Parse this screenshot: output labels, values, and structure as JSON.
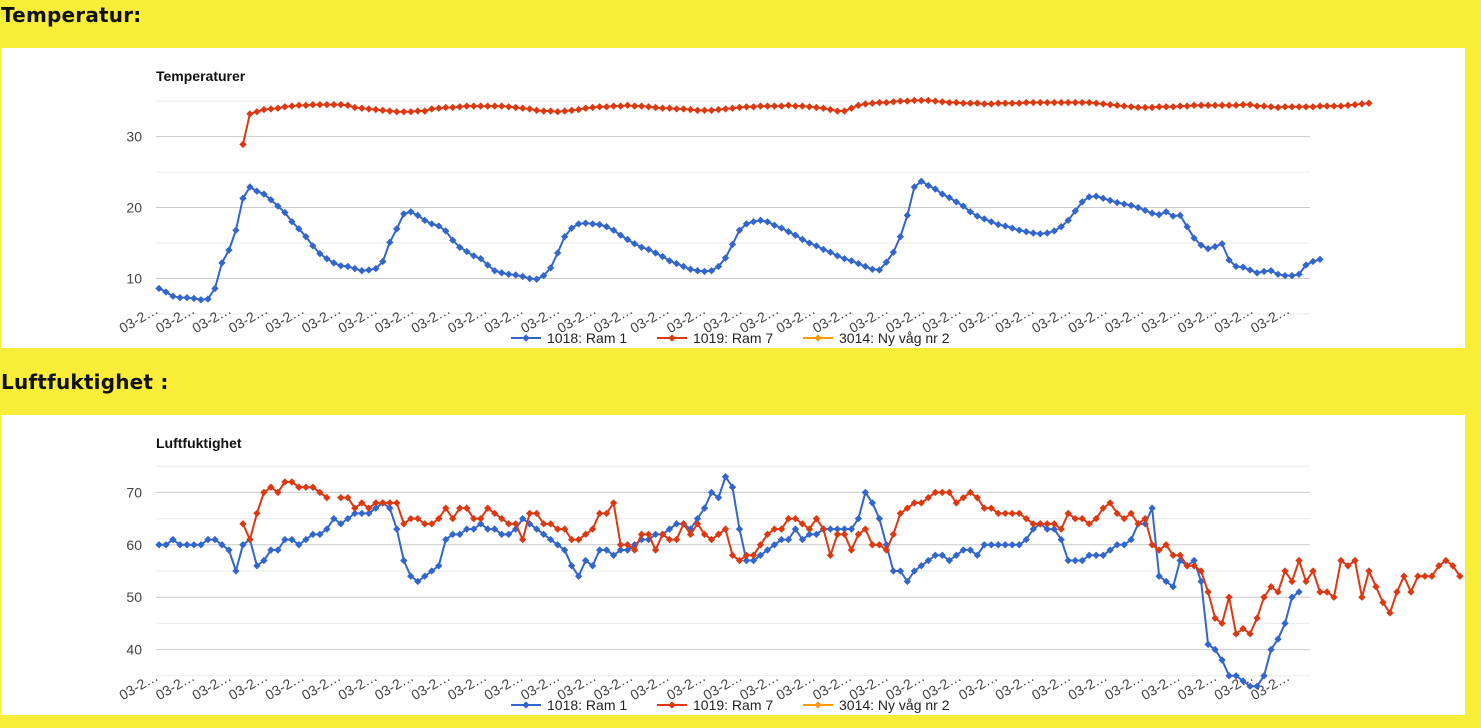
{
  "sections": {
    "temperature_heading": "Temperatur:",
    "humidity_heading": "Luftfuktighet :"
  },
  "x_tick_label": "03-2…",
  "chart_data": [
    {
      "type": "line",
      "title": "Temperaturer",
      "xlabel": "",
      "ylabel": "",
      "yticks": [
        10,
        20,
        30
      ],
      "ylim": [
        5,
        36
      ],
      "grid": true,
      "legend_position": "bottom",
      "x_tick_count": 32,
      "series": [
        {
          "name": "1018: Ram 1",
          "color": "#3366cc",
          "values": [
            8.6,
            8.1,
            7.5,
            7.3,
            7.3,
            7.2,
            7.0,
            7.1,
            8.6,
            12.2,
            14.0,
            16.8,
            21.3,
            22.9,
            22.3,
            21.9,
            21.1,
            20.2,
            19.3,
            18.0,
            17.0,
            15.9,
            14.6,
            13.5,
            12.8,
            12.2,
            11.8,
            11.7,
            11.4,
            11.1,
            11.2,
            11.4,
            12.4,
            15.1,
            17.0,
            19.1,
            19.4,
            18.9,
            18.2,
            17.7,
            17.4,
            16.7,
            15.4,
            14.4,
            13.8,
            13.2,
            12.8,
            11.9,
            11.1,
            10.8,
            10.6,
            10.5,
            10.3,
            10.0,
            9.9,
            10.4,
            11.5,
            13.6,
            15.9,
            17.1,
            17.7,
            17.8,
            17.7,
            17.6,
            17.3,
            16.8,
            16.1,
            15.5,
            14.9,
            14.4,
            14.1,
            13.6,
            13.1,
            12.5,
            12.1,
            11.7,
            11.3,
            11.1,
            11.0,
            11.1,
            11.7,
            12.9,
            14.8,
            16.8,
            17.7,
            18.0,
            18.2,
            18.0,
            17.5,
            17.1,
            16.6,
            16.1,
            15.5,
            15.0,
            14.6,
            14.1,
            13.7,
            13.2,
            12.8,
            12.5,
            12.1,
            11.7,
            11.3,
            11.2,
            12.3,
            13.7,
            15.9,
            18.9,
            22.9,
            23.7,
            23.1,
            22.6,
            21.9,
            21.4,
            20.8,
            20.2,
            19.4,
            18.8,
            18.4,
            18.0,
            17.6,
            17.4,
            17.1,
            16.8,
            16.6,
            16.4,
            16.3,
            16.4,
            16.7,
            17.3,
            18.2,
            19.5,
            20.8,
            21.5,
            21.6,
            21.3,
            21.0,
            20.7,
            20.5,
            20.3,
            20.0,
            19.6,
            19.2,
            19.0,
            19.4,
            18.8,
            18.9,
            17.3,
            15.7,
            14.7,
            14.2,
            14.5,
            14.9,
            12.6,
            11.7,
            11.6,
            11.2,
            10.8,
            11.0,
            11.1,
            10.6,
            10.4,
            10.4,
            10.6,
            11.9,
            12.4,
            12.7
          ]
        },
        {
          "name": "1019: Ram 7",
          "color": "#dc3912",
          "start_index": 12,
          "values": [
            28.9,
            33.2,
            33.5,
            33.8,
            33.9,
            34.0,
            34.2,
            34.3,
            34.4,
            34.4,
            34.5,
            34.5,
            34.5,
            34.5,
            34.5,
            34.4,
            34.1,
            34.0,
            33.9,
            33.8,
            33.7,
            33.6,
            33.5,
            33.5,
            33.5,
            33.6,
            33.6,
            33.9,
            34.0,
            34.1,
            34.1,
            34.2,
            34.3,
            34.3,
            34.3,
            34.3,
            34.3,
            34.3,
            34.2,
            34.1,
            34.0,
            33.9,
            33.7,
            33.6,
            33.6,
            33.5,
            33.6,
            33.7,
            33.8,
            34.0,
            34.1,
            34.2,
            34.2,
            34.3,
            34.3,
            34.4,
            34.3,
            34.3,
            34.2,
            34.1,
            34.0,
            34.0,
            33.9,
            33.9,
            33.8,
            33.7,
            33.7,
            33.7,
            33.8,
            33.9,
            34.0,
            34.1,
            34.2,
            34.2,
            34.3,
            34.3,
            34.3,
            34.3,
            34.4,
            34.3,
            34.3,
            34.2,
            34.1,
            34.0,
            33.8,
            33.6,
            33.6,
            34.0,
            34.4,
            34.6,
            34.7,
            34.8,
            34.8,
            34.9,
            35.0,
            35.0,
            35.1,
            35.1,
            35.1,
            35.0,
            34.9,
            34.8,
            34.8,
            34.7,
            34.7,
            34.7,
            34.6,
            34.6,
            34.7,
            34.7,
            34.7,
            34.7,
            34.8,
            34.8,
            34.8,
            34.8,
            34.8,
            34.8,
            34.8,
            34.8,
            34.8,
            34.8,
            34.7,
            34.6,
            34.5,
            34.4,
            34.3,
            34.2,
            34.1,
            34.1,
            34.1,
            34.2,
            34.2,
            34.2,
            34.3,
            34.3,
            34.4,
            34.4,
            34.4,
            34.4,
            34.4,
            34.4,
            34.4,
            34.5,
            34.5,
            34.3,
            34.3,
            34.2,
            34.1,
            34.2,
            34.2,
            34.2,
            34.2,
            34.2,
            34.3,
            34.3,
            34.3,
            34.3,
            34.4,
            34.5,
            34.6,
            34.7
          ]
        },
        {
          "name": "3014: Ny våg nr 2",
          "color": "#ff9900",
          "values": []
        }
      ]
    },
    {
      "type": "line",
      "title": "Luftfuktighet",
      "xlabel": "",
      "ylabel": "",
      "yticks": [
        40,
        50,
        60,
        70
      ],
      "ylim": [
        34,
        76
      ],
      "grid": true,
      "legend_position": "bottom",
      "x_tick_count": 32,
      "series": [
        {
          "name": "1018: Ram 1",
          "color": "#3366cc",
          "values": [
            60,
            60,
            61,
            60,
            60,
            60,
            60,
            61,
            61,
            60,
            59,
            55,
            60,
            61,
            56,
            57,
            59,
            59,
            61,
            61,
            60,
            61,
            62,
            62,
            63,
            65,
            64,
            65,
            66,
            66,
            66,
            67,
            68,
            67,
            63,
            57,
            54,
            53,
            54,
            55,
            56,
            61,
            62,
            62,
            63,
            63,
            64,
            63,
            63,
            62,
            62,
            63,
            65,
            64,
            63,
            62,
            61,
            60,
            59,
            56,
            54,
            57,
            56,
            59,
            59,
            58,
            59,
            59,
            60,
            61,
            61,
            62,
            62,
            63,
            64,
            64,
            63,
            65,
            67,
            70,
            69,
            73,
            71,
            63,
            57,
            57,
            58,
            59,
            60,
            61,
            61,
            63,
            61,
            62,
            62,
            63,
            63,
            63,
            63,
            63,
            65,
            70,
            68,
            65,
            60,
            55,
            55,
            53,
            55,
            56,
            57,
            58,
            58,
            57,
            58,
            59,
            59,
            58,
            60,
            60,
            60,
            60,
            60,
            60,
            61,
            63,
            64,
            63,
            63,
            61,
            57,
            57,
            57,
            58,
            58,
            58,
            59,
            60,
            60,
            61,
            64,
            64,
            67,
            54,
            53,
            52,
            57,
            56,
            57,
            53,
            41,
            40,
            38,
            35,
            35,
            34,
            33,
            33,
            35,
            40,
            42,
            45,
            50,
            51
          ]
        },
        {
          "name": "1019: Ram 7",
          "color": "#dc3912",
          "start_index": 12,
          "values": [
            64,
            61,
            66,
            70,
            71,
            70,
            72,
            72,
            71,
            71,
            71,
            70,
            69,
            null,
            69,
            69,
            67,
            68,
            67,
            68,
            68,
            68,
            68,
            64,
            65,
            65,
            64,
            64,
            65,
            67,
            65,
            67,
            67,
            65,
            65,
            67,
            66,
            65,
            64,
            64,
            61,
            66,
            66,
            64,
            64,
            63,
            63,
            61,
            61,
            62,
            63,
            66,
            66,
            68,
            60,
            60,
            59,
            62,
            62,
            59,
            62,
            61,
            61,
            64,
            62,
            64,
            62,
            61,
            62,
            63,
            58,
            57,
            58,
            58,
            60,
            62,
            63,
            63,
            65,
            65,
            64,
            63,
            65,
            63,
            58,
            62,
            62,
            59,
            62,
            63,
            60,
            60,
            59,
            62,
            66,
            67,
            68,
            68,
            69,
            70,
            70,
            70,
            68,
            69,
            70,
            69,
            67,
            67,
            66,
            66,
            66,
            66,
            65,
            64,
            64,
            64,
            64,
            63,
            66,
            65,
            65,
            64,
            65,
            67,
            68,
            66,
            65,
            66,
            64,
            65,
            60,
            59,
            60,
            58,
            58,
            56,
            56,
            55,
            51,
            46,
            45,
            50,
            43,
            44,
            43,
            46,
            50,
            52,
            51,
            55,
            53,
            57,
            53,
            55,
            51,
            51,
            50,
            57,
            56,
            57,
            50,
            55,
            52,
            49,
            47,
            51,
            54,
            51,
            54,
            54,
            54,
            56,
            57,
            56,
            54
          ]
        },
        {
          "name": "3014: Ny våg nr 2",
          "color": "#ff9900",
          "values": []
        }
      ]
    }
  ]
}
